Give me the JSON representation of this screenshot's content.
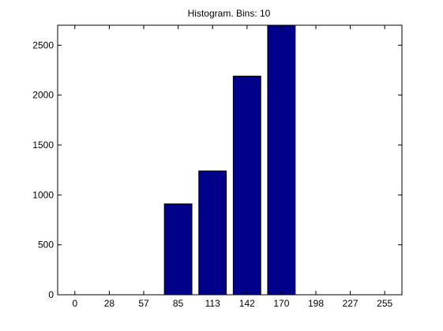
{
  "chart_data": {
    "type": "bar",
    "title": "Histogram. Bins: 10",
    "xlabel": "",
    "ylabel": "",
    "x_tick_labels": [
      "0",
      "28",
      "57",
      "85",
      "113",
      "142",
      "170",
      "198",
      "227",
      "255"
    ],
    "bins": [
      0,
      1,
      2,
      3,
      4,
      5,
      6,
      7,
      8,
      9
    ],
    "values": [
      0,
      0,
      0,
      910,
      1240,
      2190,
      2700,
      0,
      0,
      0
    ],
    "y_ticks": [
      0,
      500,
      1000,
      1500,
      2000,
      2500
    ],
    "ylim": [
      0,
      2700
    ],
    "grid": false,
    "bar_color": "#00008B",
    "bar_edge_color": "#000000"
  }
}
